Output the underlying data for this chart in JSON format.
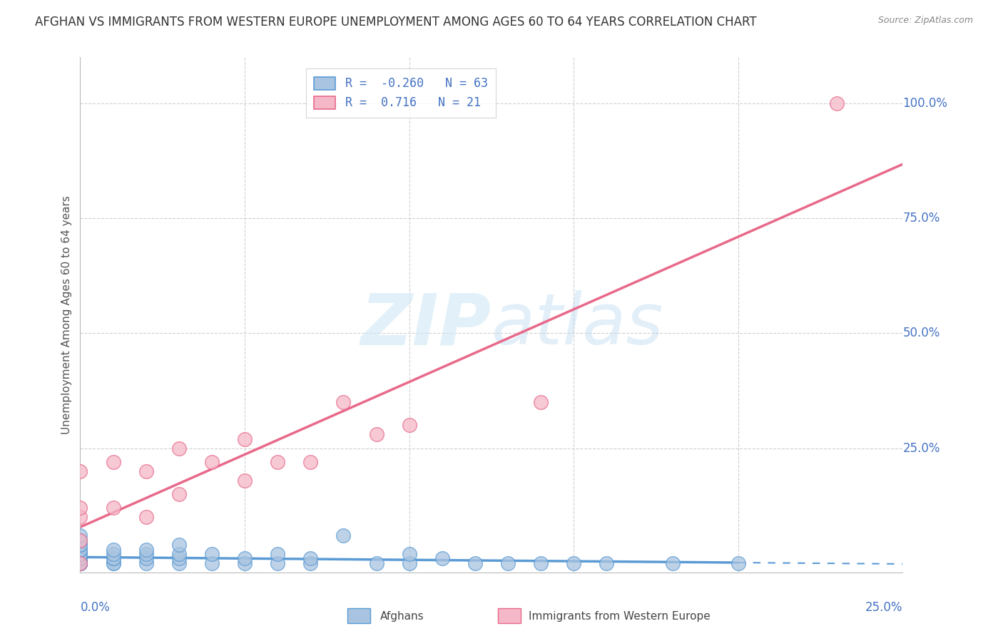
{
  "title": "AFGHAN VS IMMIGRANTS FROM WESTERN EUROPE UNEMPLOYMENT AMONG AGES 60 TO 64 YEARS CORRELATION CHART",
  "source": "Source: ZipAtlas.com",
  "ylabel": "Unemployment Among Ages 60 to 64 years",
  "xlim": [
    0.0,
    0.25
  ],
  "ylim": [
    -0.02,
    1.1
  ],
  "xtick_labels_outer": [
    "0.0%",
    "25.0%"
  ],
  "xtick_vals_outer": [
    0.0,
    0.25
  ],
  "ytick_labels": [
    "100.0%",
    "75.0%",
    "50.0%",
    "25.0%"
  ],
  "ytick_vals": [
    1.0,
    0.75,
    0.5,
    0.25
  ],
  "afghans_color": "#a8c4e0",
  "afghans_edge_color": "#5b9bd5",
  "western_color": "#f4b8c8",
  "western_edge_color": "#e8698a",
  "trendline_afghan_color": "#5b9bd5",
  "trendline_western_color": "#e8698a",
  "R_afghan": -0.26,
  "N_afghan": 63,
  "R_western": 0.716,
  "N_western": 21,
  "watermark_zip": "ZIP",
  "watermark_atlas": "atlas",
  "legend_labels": [
    "Afghans",
    "Immigrants from Western Europe"
  ],
  "afghans_x": [
    0.0,
    0.0,
    0.0,
    0.0,
    0.0,
    0.0,
    0.0,
    0.0,
    0.0,
    0.0,
    0.0,
    0.0,
    0.0,
    0.0,
    0.0,
    0.0,
    0.0,
    0.0,
    0.0,
    0.0,
    0.0,
    0.0,
    0.0,
    0.0,
    0.0,
    0.0,
    0.0,
    0.0,
    0.0,
    0.01,
    0.01,
    0.01,
    0.01,
    0.01,
    0.01,
    0.02,
    0.02,
    0.02,
    0.02,
    0.03,
    0.03,
    0.03,
    0.03,
    0.04,
    0.04,
    0.05,
    0.05,
    0.06,
    0.06,
    0.07,
    0.07,
    0.08,
    0.09,
    0.1,
    0.1,
    0.11,
    0.12,
    0.13,
    0.14,
    0.15,
    0.16,
    0.18,
    0.2
  ],
  "afghans_y": [
    0.0,
    0.0,
    0.0,
    0.0,
    0.0,
    0.0,
    0.0,
    0.0,
    0.0,
    0.0,
    0.0,
    0.0,
    0.0,
    0.0,
    0.0,
    0.0,
    0.01,
    0.01,
    0.01,
    0.01,
    0.02,
    0.02,
    0.02,
    0.03,
    0.03,
    0.04,
    0.04,
    0.05,
    0.06,
    0.0,
    0.0,
    0.01,
    0.01,
    0.02,
    0.03,
    0.0,
    0.01,
    0.02,
    0.03,
    0.0,
    0.01,
    0.02,
    0.04,
    0.0,
    0.02,
    0.0,
    0.01,
    0.0,
    0.02,
    0.0,
    0.01,
    0.06,
    0.0,
    0.0,
    0.02,
    0.01,
    0.0,
    0.0,
    0.0,
    0.0,
    0.0,
    0.0,
    0.0
  ],
  "western_x": [
    0.0,
    0.0,
    0.0,
    0.0,
    0.0,
    0.01,
    0.01,
    0.02,
    0.02,
    0.03,
    0.03,
    0.04,
    0.05,
    0.05,
    0.06,
    0.07,
    0.08,
    0.09,
    0.1,
    0.14,
    0.23
  ],
  "western_y": [
    0.0,
    0.05,
    0.1,
    0.12,
    0.2,
    0.12,
    0.22,
    0.1,
    0.2,
    0.15,
    0.25,
    0.22,
    0.18,
    0.27,
    0.22,
    0.22,
    0.35,
    0.28,
    0.3,
    0.35,
    1.0
  ],
  "background_color": "#ffffff",
  "grid_color": "#d0d0d0",
  "title_fontsize": 12,
  "axis_fontsize": 11,
  "tick_fontsize": 12,
  "legend_fontsize": 12,
  "tick_color": "#4472c4"
}
